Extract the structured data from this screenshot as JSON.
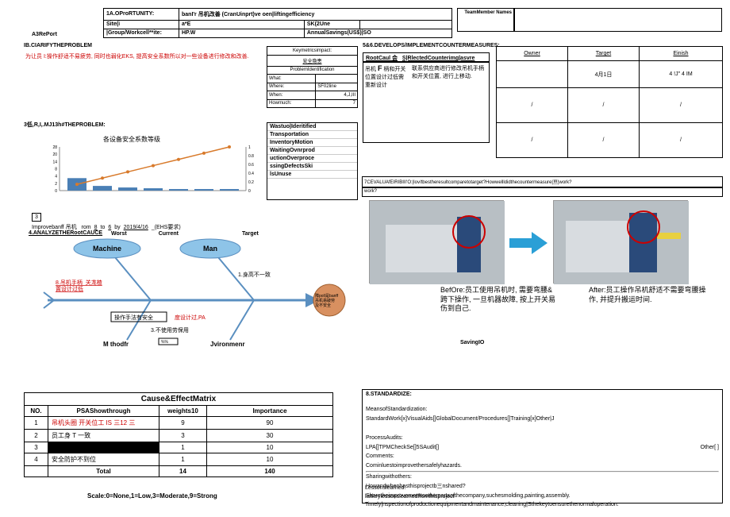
{
  "header": {
    "op_label": "1A.OProRTUNITY:",
    "op_value": "banI'r 吊机改善 (CranUinprt)ve oen|liftingefficiency",
    "site_label": "Site(i",
    "site_value": "a*E",
    "line_label": "",
    "line_value": "SK(2Une",
    "group_label": "|Group/Workcell**ite:",
    "group_value": "HP.W",
    "savings_label": "AnnualSavings(US$)|SO",
    "a3": "A3RePort",
    "team": "TeamMember\nNames"
  },
  "s1": {
    "title": "IB.CIARIFYTHEPROBLEM",
    "red": "为让员 I:",
    "body": "操作舒适不易疲劳, 同时也弱化EKS, 提高安全系数所以对一些设备进行修改和改善."
  },
  "kmi": {
    "title": "Keymetricsimpact:",
    "safety": "安全隐患",
    "pi": "ProblemIdentification",
    "what": "What:",
    "where": "Where:",
    "where_v": "SF02line",
    "when": "When:",
    "when_v": "4,J,III",
    "how": "Howmuch:",
    "how_v": "7"
  },
  "s5": {
    "title": "5&6.DEVELOPS/IMPLEMENTCOUNTERMEASURES:",
    "rc_label": "RootCaul 会",
    "cm_label": "S|RlectedCounterimg|asvre",
    "body1": "吊机 F 柄和开关位置设计过低需重新设计",
    "body2": "联系供应商进行修改吊机手柄和开关位置, 进行上移动.",
    "owner": "Owner",
    "target": "Target",
    "finish": "Einish",
    "date1": "4月1日",
    "dot": "4 !J\" 4 IM"
  },
  "s3": {
    "title": "3低,R,I,.MJ13h#THEPROBLEM:",
    "chart_title": "各设备安全系数等级"
  },
  "waste": {
    "t": "Wastuo|Ideritified",
    "w1": "Transportation",
    "w2": "InventoryMotion",
    "w3": "WaitingOvnrprod",
    "w4": "uctionOverproce",
    "w5": "ssingDefectsSki",
    "w6": "lsUnuse"
  },
  "s7": {
    "title": "7CEVALUAfEIRIBIII'O:|lov/tbestheresultcomparetotarget?Howwellldidthecountermeasure|亘|work?",
    "b": "work?"
  },
  "photos": {
    "before": "BefOre:员工使用吊机时, 需要弯腰&跨下操作, 一旦机器故障, 按上开关易伤到自己.",
    "after": "After:员工操作吊机舒适不需要弯腰操作, 并提升搬运时间."
  },
  "target": {
    "pre": "Improvebanff 吊机",
    "from": "rom",
    "v1": "8",
    "to": "to",
    "v2": "6",
    "by": "by",
    "date": "2019/4/16",
    "ehs": "_(EHS要求)",
    "tgt": "Target",
    "wc": "Worst",
    "cc": "Current"
  },
  "s4": {
    "title": "4.ANALYZETHERootCAUCE",
    "machine": "Machine",
    "man": "Man",
    "m1": "8.吊机手柄_关尨楂",
    "m2": "置设计过低",
    "m3": "操作手法有安全",
    "m4": "度设计过,PA",
    "m5": "3.不使用劳保用",
    "method": "M thodfr",
    "env": "Jvironmenr",
    "y1": "1.身高不一致",
    "circ": "障polI是banff 吊机易破劳及不安全"
  },
  "savingio": "SavingIO",
  "ce": {
    "title": "Cause&EffectMatrix",
    "h1": "NO.",
    "h2": "PSAShowthrough",
    "h3": "weights10",
    "h4": "Importance",
    "r1a": "1",
    "r1b": "吊机头圈 开关位工 IS 三12 三",
    "r1c": "9",
    "r1d": "90",
    "r2a": "2",
    "r2b": "员工身 T 一致",
    "r2c": "3",
    "r2d": "30",
    "r3a": "3",
    "r3c": "1",
    "r3d": "10",
    "r4a": "4",
    "r4b": "安全防护不到位",
    "r4c": "1",
    "r4d": "10",
    "ta": "Total",
    "tc": "14",
    "td": "140",
    "scale": "Scale:0=None,1=Low,3=Moderate,9=Strong"
  },
  "s8": {
    "title": "8.STANDARDIZE:",
    "l1": "MeansofStandardization:",
    "l2": "StandardWork[x]VisualAids[]GlobalDocument/Procedures[]Training[x]Other|J",
    "l3": "ProcessAudits:",
    "l4": "LPA[]TPMCheckSe[]5SAudit[]",
    "l4b": "Other[    ]",
    "l5": "Comments:",
    "l6": "Cominluestoimprovethersafelyhazards.",
    "l7": "Sharingwithothers:",
    "l8": "Howandwhenhasthisprojectb三nshared?",
    "l9": "Sharetheimprovementtootherpartsofthecompany,suchesmolding,painting,assembly."
  },
  "s9": {
    "l1": "Lessonslearned:",
    "l2": "listkeylessonslearnedfromthisproject",
    "l3": "Timely|nspectionofproductionequipmentandmaintenance,cleaning|Sthekeytoensurethenormaloperation."
  },
  "chart": {
    "yticks": [
      0,
      2,
      4,
      8,
      14,
      20,
      28
    ],
    "y2ticks": [
      0,
      0.2,
      0.4,
      0.6,
      0.8,
      1
    ],
    "bars": [
      8,
      3,
      2,
      1.5,
      1,
      1,
      1
    ],
    "colors": {
      "bar": "#4a7fb5",
      "line": "#d87a2b",
      "axis": "#888"
    }
  }
}
